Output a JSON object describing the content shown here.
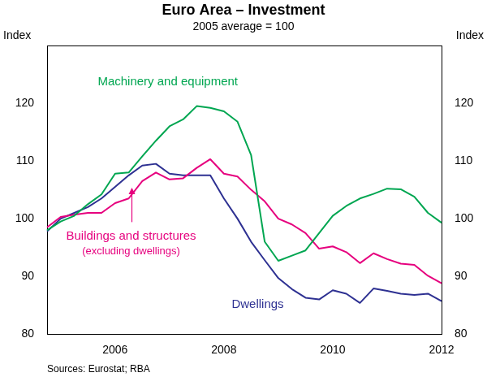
{
  "chart_data": {
    "type": "line",
    "title": "Euro Area – Investment",
    "subtitle": "2005 average = 100",
    "ylabel": "Index",
    "y2label": "Index",
    "source": "Sources: Eurostat; RBA",
    "annotations": [
      "(excluding dwellings)"
    ],
    "categories": [
      null,
      null,
      null,
      null,
      null,
      "2006",
      null,
      null,
      null,
      null,
      null,
      null,
      null,
      "2008",
      null,
      null,
      null,
      null,
      null,
      null,
      null,
      "2010",
      null,
      null,
      null,
      null,
      null,
      null,
      null,
      "2012"
    ],
    "series": [
      {
        "name": "Machinery and equipment",
        "color": "#00a651",
        "values": [
          98,
          99.5,
          100.5,
          102.5,
          104.2,
          107.8,
          108,
          110.8,
          113.5,
          116,
          117.2,
          119.5,
          119.2,
          118.6,
          116.8,
          111,
          96,
          92.7,
          93.6,
          94.5,
          97.5,
          100.5,
          102.2,
          103.5,
          104.3,
          105.2,
          105.1,
          103.8,
          101,
          99.3
        ]
      },
      {
        "name": "Buildings and structures",
        "color": "#e6007e",
        "values": [
          98.5,
          100.3,
          100.7,
          101,
          101,
          102.7,
          103.5,
          106.5,
          108,
          106.8,
          107,
          108.8,
          110.3,
          107.8,
          107.3,
          105,
          103,
          100,
          99,
          97.5,
          94.8,
          95.2,
          94.2,
          92.3,
          94,
          93,
          92.2,
          92,
          90.1,
          88.8
        ]
      },
      {
        "name": "Dwellings",
        "color": "#2e3192",
        "values": [
          97.8,
          100,
          101,
          102,
          103.5,
          105.5,
          107.5,
          109.2,
          109.5,
          107.8,
          107.5,
          107.5,
          107.5,
          103.5,
          100,
          96,
          92.8,
          89.7,
          87.8,
          86.3,
          86,
          87.6,
          87,
          85.4,
          87.9,
          87.5,
          87,
          86.8,
          87,
          85.7
        ]
      }
    ],
    "ylim": [
      80,
      130
    ],
    "yticks": [
      80,
      90,
      100,
      110,
      120
    ],
    "y2lim": [
      80,
      130
    ],
    "y2ticks": [
      80,
      90,
      100,
      110,
      120
    ],
    "grid": false,
    "legend": "none"
  }
}
